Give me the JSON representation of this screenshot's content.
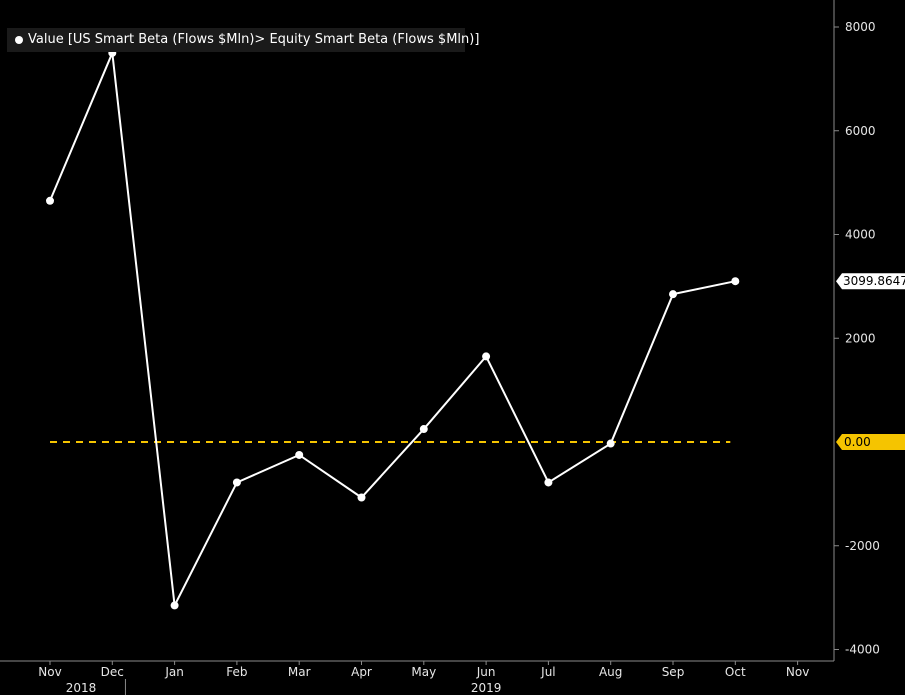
{
  "chart_data": {
    "type": "line",
    "legend_placement": "top-left",
    "series": [
      {
        "name": "Value [US Smart Beta (Flows $Mln)> Equity Smart Beta (Flows $Mln)]",
        "color": "#ffffff",
        "x": [
          "Nov",
          "Dec",
          "Jan",
          "Feb",
          "Mar",
          "Apr",
          "May",
          "Jun",
          "Jul",
          "Aug",
          "Sep",
          "Oct"
        ],
        "values": [
          4650,
          7500,
          -3150,
          -780,
          -250,
          -1070,
          250,
          1650,
          -780,
          -30,
          2850,
          3099.8647
        ]
      }
    ],
    "x_ticks": [
      "Nov",
      "Dec",
      "Jan",
      "Feb",
      "Mar",
      "Apr",
      "May",
      "Jun",
      "Jul",
      "Aug",
      "Sep",
      "Oct",
      "Nov"
    ],
    "year_labels": [
      {
        "label": "2018",
        "month": "Nov"
      },
      {
        "label": "2019",
        "month": "Jun"
      }
    ],
    "y_ticks": [
      8000,
      6000,
      4000,
      2000,
      -2000,
      -4000
    ],
    "ylim": [
      -4000,
      8000
    ],
    "reference_line": {
      "value": 0,
      "label": "0.00",
      "color": "#f5c400",
      "style": "dashed"
    },
    "last_value_label": "3099.8647",
    "grid": false,
    "background": "#000000"
  }
}
